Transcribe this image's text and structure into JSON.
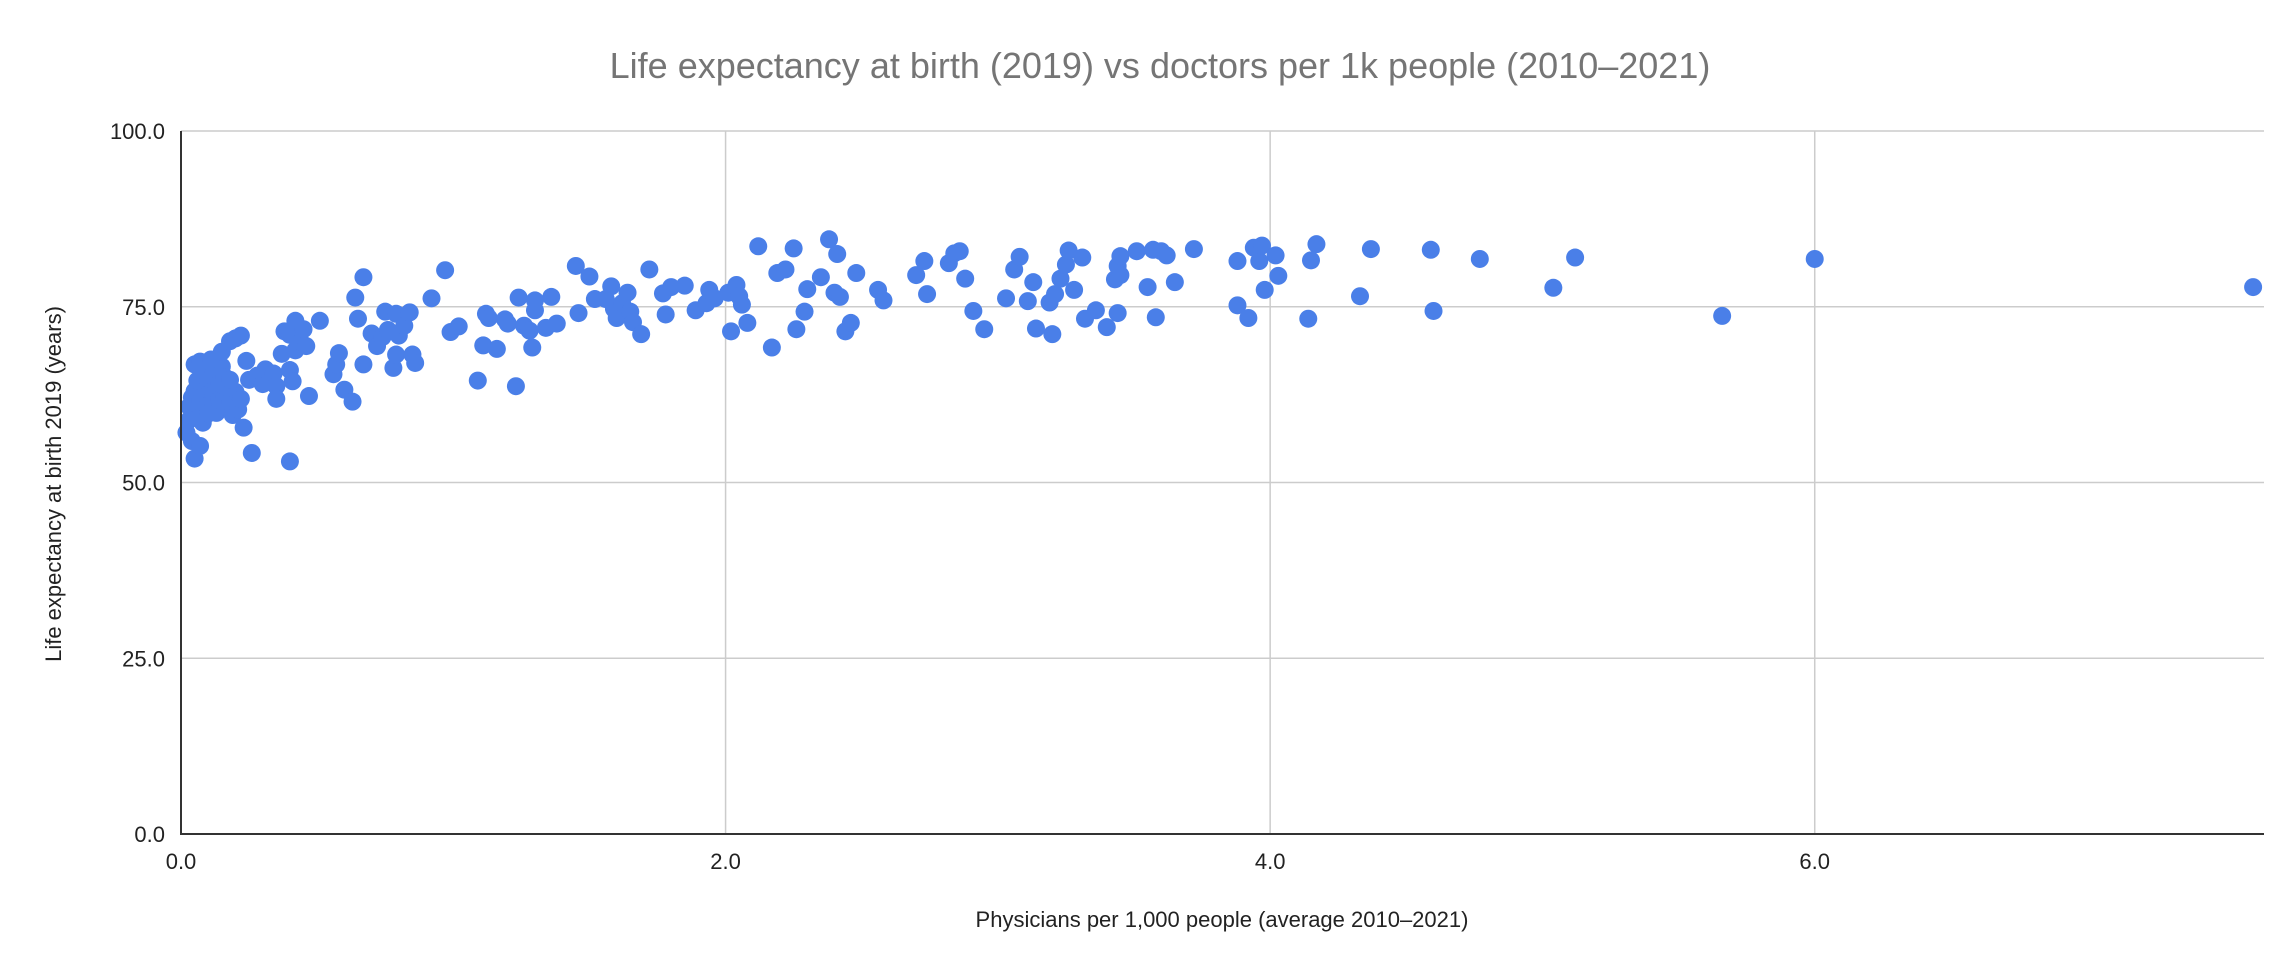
{
  "chart_data": {
    "type": "scatter",
    "title": "Life expectancy at birth (2019) vs doctors per 1k people (2010–2021)",
    "xlabel": "Physicians per 1,000 people (average 2010–2021)",
    "ylabel": "Life expectancy at birth 2019 (years)",
    "xlim": [
      0,
      7.65
    ],
    "ylim": [
      0,
      100
    ],
    "xticks": [
      0,
      2,
      4,
      6
    ],
    "xtick_labels": [
      "0.0",
      "2.0",
      "4.0",
      "6.0"
    ],
    "yticks": [
      0,
      25,
      50,
      75,
      100
    ],
    "ytick_labels": [
      "0.0",
      "25.0",
      "50.0",
      "75.0",
      "100.0"
    ],
    "grid": true,
    "marker_color": "#4a7fe8",
    "points": [
      [
        0.02,
        57.1
      ],
      [
        0.04,
        55.9
      ],
      [
        0.05,
        53.4
      ],
      [
        0.07,
        55.2
      ],
      [
        0.03,
        60.8
      ],
      [
        0.04,
        62.1
      ],
      [
        0.05,
        63.0
      ],
      [
        0.06,
        60.3
      ],
      [
        0.07,
        61.5
      ],
      [
        0.08,
        62.7
      ],
      [
        0.09,
        63.4
      ],
      [
        0.1,
        61.0
      ],
      [
        0.11,
        60.2
      ],
      [
        0.12,
        62.5
      ],
      [
        0.13,
        59.9
      ],
      [
        0.14,
        61.8
      ],
      [
        0.15,
        63.1
      ],
      [
        0.16,
        62.2
      ],
      [
        0.17,
        60.7
      ],
      [
        0.18,
        61.4
      ],
      [
        0.19,
        59.6
      ],
      [
        0.2,
        62.9
      ],
      [
        0.21,
        60.4
      ],
      [
        0.22,
        61.9
      ],
      [
        0.06,
        64.5
      ],
      [
        0.08,
        65.3
      ],
      [
        0.09,
        66.2
      ],
      [
        0.1,
        64.8
      ],
      [
        0.12,
        65.7
      ],
      [
        0.13,
        63.8
      ],
      [
        0.14,
        64.1
      ],
      [
        0.15,
        66.5
      ],
      [
        0.16,
        65.0
      ],
      [
        0.17,
        63.5
      ],
      [
        0.18,
        64.6
      ],
      [
        0.05,
        66.8
      ],
      [
        0.07,
        67.2
      ],
      [
        0.11,
        67.5
      ],
      [
        0.08,
        58.5
      ],
      [
        0.1,
        59.8
      ],
      [
        0.03,
        58.9
      ],
      [
        0.23,
        57.8
      ],
      [
        0.26,
        54.2
      ],
      [
        0.4,
        53.0
      ],
      [
        0.15,
        68.6
      ],
      [
        0.18,
        70.1
      ],
      [
        0.2,
        70.5
      ],
      [
        0.22,
        70.9
      ],
      [
        0.24,
        67.3
      ],
      [
        0.25,
        64.6
      ],
      [
        0.28,
        65.2
      ],
      [
        0.3,
        64.0
      ],
      [
        0.31,
        66.1
      ],
      [
        0.34,
        65.5
      ],
      [
        0.35,
        63.7
      ],
      [
        0.35,
        61.9
      ],
      [
        0.37,
        68.3
      ],
      [
        0.38,
        71.5
      ],
      [
        0.4,
        66.0
      ],
      [
        0.4,
        71.0
      ],
      [
        0.42,
        73.0
      ],
      [
        0.41,
        64.4
      ],
      [
        0.42,
        68.8
      ],
      [
        0.44,
        70.0
      ],
      [
        0.45,
        71.8
      ],
      [
        0.46,
        69.4
      ],
      [
        0.47,
        62.3
      ],
      [
        0.51,
        73.0
      ],
      [
        0.56,
        65.4
      ],
      [
        0.57,
        66.8
      ],
      [
        0.58,
        68.4
      ],
      [
        0.6,
        63.2
      ],
      [
        0.63,
        61.5
      ],
      [
        0.64,
        76.3
      ],
      [
        0.65,
        73.3
      ],
      [
        0.67,
        79.2
      ],
      [
        0.67,
        66.8
      ],
      [
        0.7,
        71.2
      ],
      [
        0.72,
        69.4
      ],
      [
        0.74,
        70.7
      ],
      [
        0.75,
        74.3
      ],
      [
        0.76,
        71.7
      ],
      [
        0.78,
        66.3
      ],
      [
        0.79,
        74.0
      ],
      [
        0.79,
        68.2
      ],
      [
        0.8,
        70.9
      ],
      [
        0.82,
        72.3
      ],
      [
        0.84,
        74.2
      ],
      [
        0.85,
        68.2
      ],
      [
        0.86,
        67.0
      ],
      [
        0.92,
        76.2
      ],
      [
        0.97,
        80.2
      ],
      [
        0.99,
        71.4
      ],
      [
        1.02,
        72.2
      ],
      [
        1.09,
        64.5
      ],
      [
        1.11,
        69.5
      ],
      [
        1.12,
        74.0
      ],
      [
        1.13,
        73.4
      ],
      [
        1.16,
        69.0
      ],
      [
        1.19,
        73.2
      ],
      [
        1.2,
        72.6
      ],
      [
        1.23,
        63.7
      ],
      [
        1.24,
        76.3
      ],
      [
        1.26,
        72.3
      ],
      [
        1.28,
        71.6
      ],
      [
        1.29,
        69.2
      ],
      [
        1.3,
        75.9
      ],
      [
        1.3,
        74.5
      ],
      [
        1.34,
        72.0
      ],
      [
        1.36,
        76.4
      ],
      [
        1.38,
        72.6
      ],
      [
        1.45,
        80.8
      ],
      [
        1.46,
        74.1
      ],
      [
        1.5,
        79.3
      ],
      [
        1.52,
        76.1
      ],
      [
        1.56,
        76.1
      ],
      [
        1.58,
        77.9
      ],
      [
        1.59,
        74.7
      ],
      [
        1.6,
        73.4
      ],
      [
        1.62,
        75.5
      ],
      [
        1.64,
        77.0
      ],
      [
        1.65,
        74.3
      ],
      [
        1.66,
        72.8
      ],
      [
        1.69,
        71.1
      ],
      [
        1.72,
        80.3
      ],
      [
        1.77,
        76.9
      ],
      [
        1.78,
        73.9
      ],
      [
        1.8,
        77.8
      ],
      [
        1.85,
        78.0
      ],
      [
        1.89,
        74.5
      ],
      [
        1.93,
        75.5
      ],
      [
        1.94,
        77.4
      ],
      [
        1.96,
        76.2
      ],
      [
        2.01,
        77.0
      ],
      [
        2.02,
        71.5
      ],
      [
        2.04,
        78.1
      ],
      [
        2.05,
        76.5
      ],
      [
        2.06,
        75.3
      ],
      [
        2.08,
        72.7
      ],
      [
        2.12,
        83.6
      ],
      [
        2.17,
        69.2
      ],
      [
        2.19,
        79.8
      ],
      [
        2.22,
        80.3
      ],
      [
        2.25,
        83.3
      ],
      [
        2.26,
        71.8
      ],
      [
        2.29,
        74.3
      ],
      [
        2.3,
        77.5
      ],
      [
        2.35,
        79.2
      ],
      [
        2.38,
        84.6
      ],
      [
        2.4,
        77.0
      ],
      [
        2.41,
        82.5
      ],
      [
        2.42,
        76.4
      ],
      [
        2.44,
        71.5
      ],
      [
        2.46,
        72.7
      ],
      [
        2.48,
        79.8
      ],
      [
        2.56,
        77.4
      ],
      [
        2.58,
        75.9
      ],
      [
        2.7,
        79.5
      ],
      [
        2.73,
        81.5
      ],
      [
        2.74,
        76.8
      ],
      [
        2.82,
        81.2
      ],
      [
        2.84,
        82.6
      ],
      [
        2.86,
        82.9
      ],
      [
        2.88,
        79.0
      ],
      [
        2.91,
        74.4
      ],
      [
        2.95,
        71.8
      ],
      [
        3.03,
        76.2
      ],
      [
        3.06,
        80.3
      ],
      [
        3.08,
        82.1
      ],
      [
        3.11,
        75.8
      ],
      [
        3.13,
        78.5
      ],
      [
        3.14,
        71.9
      ],
      [
        3.19,
        75.6
      ],
      [
        3.2,
        71.1
      ],
      [
        3.21,
        76.8
      ],
      [
        3.23,
        79.0
      ],
      [
        3.25,
        81.0
      ],
      [
        3.26,
        83.0
      ],
      [
        3.28,
        77.4
      ],
      [
        3.31,
        82.0
      ],
      [
        3.32,
        73.3
      ],
      [
        3.36,
        74.5
      ],
      [
        3.4,
        72.1
      ],
      [
        3.43,
        78.9
      ],
      [
        3.44,
        74.1
      ],
      [
        3.44,
        80.8
      ],
      [
        3.45,
        82.2
      ],
      [
        3.45,
        79.5
      ],
      [
        3.51,
        82.9
      ],
      [
        3.55,
        77.8
      ],
      [
        3.57,
        83.1
      ],
      [
        3.58,
        73.5
      ],
      [
        3.6,
        82.9
      ],
      [
        3.62,
        82.3
      ],
      [
        3.65,
        78.5
      ],
      [
        3.72,
        83.2
      ],
      [
        3.88,
        81.5
      ],
      [
        3.88,
        75.2
      ],
      [
        3.92,
        73.4
      ],
      [
        3.94,
        83.4
      ],
      [
        3.96,
        81.5
      ],
      [
        3.97,
        83.7
      ],
      [
        3.98,
        77.4
      ],
      [
        4.02,
        82.3
      ],
      [
        4.03,
        79.4
      ],
      [
        4.14,
        73.3
      ],
      [
        4.15,
        81.6
      ],
      [
        4.17,
        83.9
      ],
      [
        4.33,
        76.5
      ],
      [
        4.37,
        83.2
      ],
      [
        4.59,
        83.1
      ],
      [
        4.6,
        74.4
      ],
      [
        4.77,
        81.8
      ],
      [
        5.04,
        77.7
      ],
      [
        5.12,
        82.0
      ],
      [
        5.66,
        73.7
      ],
      [
        6.0,
        81.8
      ],
      [
        7.61,
        77.8
      ]
    ]
  }
}
